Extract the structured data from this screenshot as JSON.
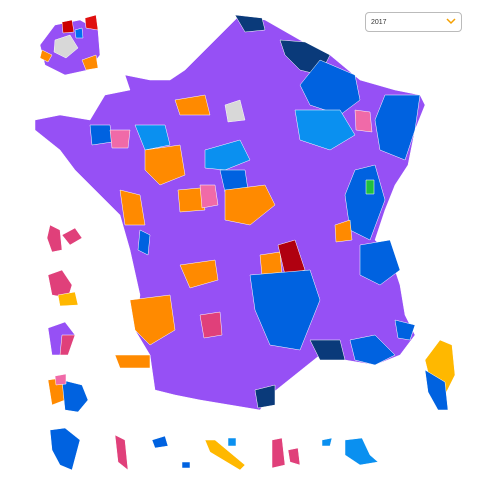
{
  "selector": {
    "value": "2017"
  }
}
